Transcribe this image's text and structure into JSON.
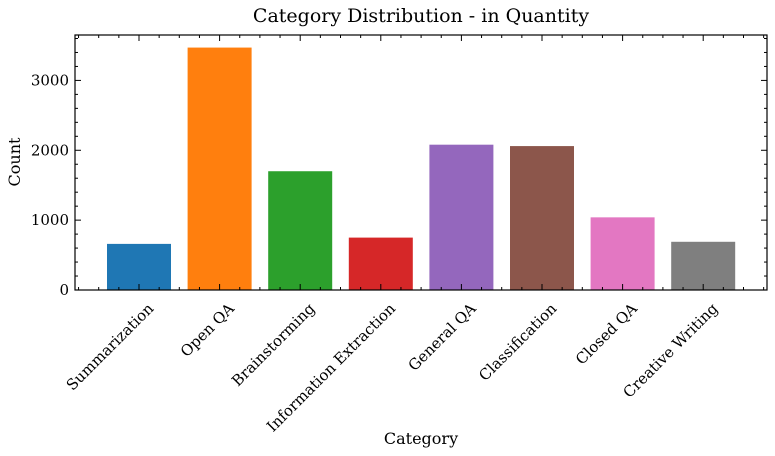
{
  "chart_data": {
    "type": "bar",
    "title": "Category Distribution - in Quantity",
    "xlabel": "Category",
    "ylabel": "Count",
    "categories": [
      "Summarization",
      "Open QA",
      "Brainstorming",
      "Information Extraction",
      "General QA",
      "Classification",
      "Closed QA",
      "Creative Writing"
    ],
    "values": [
      660,
      3470,
      1700,
      750,
      2080,
      2060,
      1040,
      690
    ],
    "colors": [
      "#1f77b4",
      "#ff7f0e",
      "#2ca02c",
      "#d62728",
      "#9467bd",
      "#8c564b",
      "#e377c2",
      "#7f7f7f"
    ],
    "ylim": [
      0,
      3650
    ],
    "yticks": [
      0,
      1000,
      2000,
      3000
    ],
    "ytick_labels": [
      "0",
      "1000",
      "2000",
      "3000"
    ],
    "grid": false,
    "legend": false
  }
}
